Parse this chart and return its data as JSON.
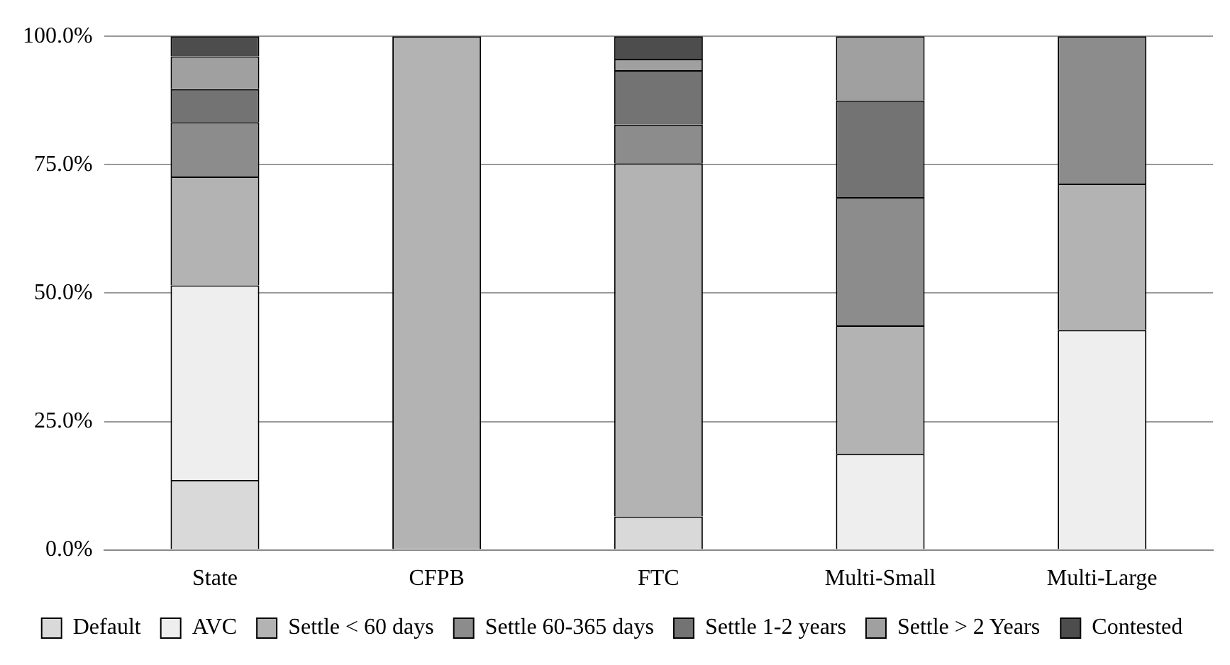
{
  "chart_data": {
    "type": "bar",
    "stacked": true,
    "categories": [
      "State",
      "CFPB",
      "FTC",
      "Multi-Small",
      "Multi-Large"
    ],
    "series": [
      {
        "name": "Default",
        "color": "#d9d9d9",
        "values": [
          13.6,
          0,
          6.5,
          0,
          0
        ]
      },
      {
        "name": "AVC",
        "color": "#eeeeee",
        "values": [
          37.9,
          0,
          0,
          18.7,
          42.8
        ]
      },
      {
        "name": "Settle < 60 days",
        "color": "#b3b3b3",
        "values": [
          21.2,
          100,
          68.8,
          25,
          28.5
        ]
      },
      {
        "name": "Settle 60-365 days",
        "color": "#8c8c8c",
        "values": [
          10.6,
          0,
          7.5,
          25,
          28.7
        ]
      },
      {
        "name": "Settle 1-2 years",
        "color": "#737373",
        "values": [
          6.4,
          0,
          10.6,
          18.8,
          0
        ]
      },
      {
        "name": "Settle > 2 Years",
        "color": "#a0a0a0",
        "values": [
          6.4,
          0,
          2.2,
          12.5,
          0
        ]
      },
      {
        "name": "Contested",
        "color": "#4d4d4d",
        "values": [
          3.9,
          0,
          4.4,
          0,
          0
        ]
      }
    ],
    "ylim": [
      0,
      100
    ],
    "yticks": [
      {
        "value": 0,
        "label": "0.0%"
      },
      {
        "value": 25,
        "label": "25.0%"
      },
      {
        "value": 50,
        "label": "50.0%"
      },
      {
        "value": 75,
        "label": "75.0%"
      },
      {
        "value": 100,
        "label": "100.0%"
      }
    ],
    "grid": "y",
    "legend": "bottom"
  }
}
